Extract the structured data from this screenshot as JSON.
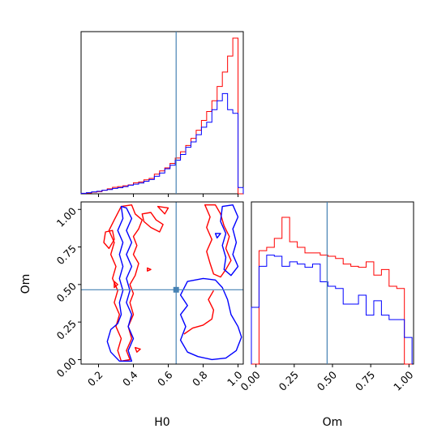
{
  "chart_data": {
    "type": "corner",
    "parameters": [
      "H0",
      "Om"
    ],
    "truths": {
      "H0": 0.645,
      "Om": 0.465
    },
    "colors": {
      "red": "#ff0000",
      "blue": "#0000ff",
      "truth": "#4682b4"
    },
    "panels": [
      {
        "id": "hist-H0",
        "type": "histogram",
        "xlim": [
          0.1,
          1.03
        ],
        "bin_edges": [
          0.1,
          0.13,
          0.16,
          0.19,
          0.22,
          0.25,
          0.28,
          0.31,
          0.34,
          0.37,
          0.4,
          0.43,
          0.46,
          0.49,
          0.52,
          0.55,
          0.58,
          0.61,
          0.64,
          0.67,
          0.7,
          0.73,
          0.76,
          0.79,
          0.82,
          0.85,
          0.88,
          0.91,
          0.94,
          0.97,
          1.0,
          1.03
        ],
        "series": [
          {
            "color": "red",
            "values": [
              0.002,
              0.004,
              0.009,
              0.012,
              0.02,
              0.028,
              0.036,
              0.04,
              0.045,
              0.05,
              0.062,
              0.066,
              0.078,
              0.086,
              0.11,
              0.128,
              0.145,
              0.17,
              0.2,
              0.235,
              0.27,
              0.31,
              0.355,
              0.41,
              0.46,
              0.52,
              0.6,
              0.68,
              0.77,
              0.87,
              0.0
            ]
          },
          {
            "color": "blue",
            "values": [
              0.003,
              0.006,
              0.011,
              0.014,
              0.02,
              0.024,
              0.03,
              0.034,
              0.04,
              0.048,
              0.054,
              0.06,
              0.07,
              0.08,
              0.098,
              0.116,
              0.14,
              0.16,
              0.188,
              0.22,
              0.26,
              0.29,
              0.33,
              0.372,
              0.4,
              0.47,
              0.52,
              0.56,
              0.47,
              0.45,
              0.035
            ]
          }
        ]
      },
      {
        "id": "contour-H0-Om",
        "type": "contour",
        "xlim": [
          0.1,
          1.03
        ],
        "ylim": [
          -0.03,
          1.05
        ],
        "contours": [
          {
            "color": "red",
            "closed": true,
            "points": [
              [
                0.33,
                1.02
              ],
              [
                0.39,
                1.03
              ],
              [
                0.41,
                0.97
              ],
              [
                0.45,
                0.93
              ],
              [
                0.43,
                0.87
              ],
              [
                0.4,
                0.82
              ],
              [
                0.42,
                0.76
              ],
              [
                0.4,
                0.7
              ],
              [
                0.43,
                0.64
              ],
              [
                0.41,
                0.56
              ],
              [
                0.38,
                0.5
              ],
              [
                0.4,
                0.44
              ],
              [
                0.38,
                0.38
              ],
              [
                0.4,
                0.3
              ],
              [
                0.37,
                0.22
              ],
              [
                0.39,
                0.14
              ],
              [
                0.36,
                0.06
              ],
              [
                0.38,
                0.0
              ],
              [
                0.33,
                -0.01
              ],
              [
                0.31,
                0.06
              ],
              [
                0.33,
                0.14
              ],
              [
                0.3,
                0.22
              ],
              [
                0.32,
                0.3
              ],
              [
                0.29,
                0.38
              ],
              [
                0.31,
                0.46
              ],
              [
                0.28,
                0.54
              ],
              [
                0.3,
                0.62
              ],
              [
                0.27,
                0.7
              ],
              [
                0.29,
                0.78
              ],
              [
                0.26,
                0.86
              ],
              [
                0.29,
                0.93
              ],
              [
                0.33,
                1.02
              ]
            ]
          },
          {
            "color": "red",
            "closed": true,
            "points": [
              [
                0.24,
                0.85
              ],
              [
                0.28,
                0.86
              ],
              [
                0.29,
                0.8
              ],
              [
                0.26,
                0.74
              ],
              [
                0.23,
                0.78
              ],
              [
                0.24,
                0.85
              ]
            ]
          },
          {
            "color": "red",
            "closed": true,
            "points": [
              [
                0.45,
                0.97
              ],
              [
                0.5,
                0.98
              ],
              [
                0.53,
                0.93
              ],
              [
                0.57,
                0.9
              ],
              [
                0.55,
                0.85
              ],
              [
                0.5,
                0.88
              ],
              [
                0.46,
                0.92
              ],
              [
                0.45,
                0.97
              ]
            ]
          },
          {
            "color": "red",
            "closed": true,
            "points": [
              [
                0.54,
                1.02
              ],
              [
                0.6,
                1.01
              ],
              [
                0.58,
                0.97
              ],
              [
                0.54,
                1.02
              ]
            ]
          },
          {
            "color": "red",
            "closed": true,
            "points": [
              [
                0.81,
                1.03
              ],
              [
                0.87,
                1.03
              ],
              [
                0.9,
                0.97
              ],
              [
                0.92,
                0.89
              ],
              [
                0.95,
                0.82
              ],
              [
                0.93,
                0.74
              ],
              [
                0.96,
                0.66
              ],
              [
                0.93,
                0.6
              ],
              [
                0.9,
                0.55
              ],
              [
                0.86,
                0.57
              ],
              [
                0.84,
                0.64
              ],
              [
                0.82,
                0.72
              ],
              [
                0.85,
                0.8
              ],
              [
                0.82,
                0.88
              ],
              [
                0.84,
                0.95
              ],
              [
                0.81,
                1.03
              ]
            ]
          },
          {
            "color": "red",
            "closed": false,
            "points": [
              [
                0.69,
                0.17
              ],
              [
                0.74,
                0.21
              ],
              [
                0.8,
                0.23
              ],
              [
                0.85,
                0.27
              ],
              [
                0.86,
                0.33
              ],
              [
                0.83,
                0.4
              ],
              [
                0.86,
                0.46
              ]
            ]
          },
          {
            "color": "red",
            "closed": true,
            "points": [
              [
                0.29,
                0.52
              ],
              [
                0.31,
                0.5
              ],
              [
                0.29,
                0.48
              ],
              [
                0.29,
                0.52
              ]
            ]
          },
          {
            "color": "red",
            "closed": true,
            "points": [
              [
                0.41,
                0.08
              ],
              [
                0.44,
                0.07
              ],
              [
                0.42,
                0.05
              ],
              [
                0.41,
                0.08
              ]
            ]
          },
          {
            "color": "red",
            "closed": true,
            "points": [
              [
                0.48,
                0.61
              ],
              [
                0.5,
                0.6
              ],
              [
                0.48,
                0.59
              ],
              [
                0.48,
                0.61
              ]
            ]
          },
          {
            "color": "blue",
            "closed": true,
            "points": [
              [
                0.33,
                1.02
              ],
              [
                0.36,
                1.01
              ],
              [
                0.39,
                0.94
              ],
              [
                0.36,
                0.86
              ],
              [
                0.39,
                0.78
              ],
              [
                0.36,
                0.7
              ],
              [
                0.39,
                0.62
              ],
              [
                0.36,
                0.54
              ],
              [
                0.38,
                0.46
              ],
              [
                0.36,
                0.38
              ],
              [
                0.39,
                0.3
              ],
              [
                0.37,
                0.22
              ],
              [
                0.4,
                0.14
              ],
              [
                0.37,
                0.06
              ],
              [
                0.39,
                -0.01
              ],
              [
                0.32,
                -0.01
              ],
              [
                0.27,
                0.05
              ],
              [
                0.25,
                0.12
              ],
              [
                0.27,
                0.2
              ],
              [
                0.31,
                0.24
              ],
              [
                0.33,
                0.3
              ],
              [
                0.32,
                0.38
              ],
              [
                0.34,
                0.46
              ],
              [
                0.32,
                0.54
              ],
              [
                0.34,
                0.62
              ],
              [
                0.32,
                0.7
              ],
              [
                0.34,
                0.78
              ],
              [
                0.31,
                0.86
              ],
              [
                0.34,
                0.94
              ],
              [
                0.33,
                1.02
              ]
            ]
          },
          {
            "color": "blue",
            "closed": true,
            "points": [
              [
                0.71,
                0.52
              ],
              [
                0.8,
                0.54
              ],
              [
                0.87,
                0.53
              ],
              [
                0.91,
                0.48
              ],
              [
                0.94,
                0.4
              ],
              [
                0.96,
                0.3
              ],
              [
                1.0,
                0.22
              ],
              [
                1.02,
                0.15
              ],
              [
                0.99,
                0.06
              ],
              [
                0.93,
                0.01
              ],
              [
                0.85,
                0.0
              ],
              [
                0.77,
                0.02
              ],
              [
                0.71,
                0.05
              ],
              [
                0.67,
                0.13
              ],
              [
                0.7,
                0.22
              ],
              [
                0.67,
                0.3
              ],
              [
                0.71,
                0.36
              ],
              [
                0.67,
                0.43
              ],
              [
                0.71,
                0.52
              ]
            ]
          },
          {
            "color": "blue",
            "closed": true,
            "points": [
              [
                0.91,
                1.02
              ],
              [
                0.97,
                1.03
              ],
              [
                1.0,
                0.95
              ],
              [
                0.97,
                0.87
              ],
              [
                0.99,
                0.78
              ],
              [
                0.97,
                0.7
              ],
              [
                1.0,
                0.62
              ],
              [
                0.96,
                0.56
              ],
              [
                0.92,
                0.6
              ],
              [
                0.93,
                0.68
              ],
              [
                0.91,
                0.76
              ],
              [
                0.93,
                0.84
              ],
              [
                0.9,
                0.92
              ],
              [
                0.91,
                1.02
              ]
            ]
          },
          {
            "color": "blue",
            "closed": true,
            "points": [
              [
                0.87,
                0.84
              ],
              [
                0.9,
                0.84
              ],
              [
                0.88,
                0.81
              ],
              [
                0.87,
                0.84
              ]
            ]
          }
        ]
      },
      {
        "id": "hist-Om",
        "type": "histogram",
        "xlim": [
          -0.03,
          1.03
        ],
        "bin_edges": [
          -0.03,
          0.02,
          0.07,
          0.12,
          0.17,
          0.22,
          0.27,
          0.32,
          0.37,
          0.42,
          0.47,
          0.52,
          0.57,
          0.62,
          0.67,
          0.72,
          0.77,
          0.82,
          0.87,
          0.92,
          0.97,
          1.02
        ],
        "series": [
          {
            "color": "red",
            "values": [
              0.0,
              1.02,
              1.05,
              1.13,
              1.32,
              1.1,
              1.05,
              1.0,
              1.0,
              0.98,
              0.97,
              0.95,
              0.9,
              0.88,
              0.87,
              0.92,
              0.8,
              0.85,
              0.7,
              0.68,
              0.0
            ]
          },
          {
            "color": "blue",
            "values": [
              0.51,
              0.88,
              0.98,
              0.97,
              0.88,
              0.92,
              0.9,
              0.87,
              0.9,
              0.74,
              0.7,
              0.68,
              0.54,
              0.54,
              0.62,
              0.44,
              0.57,
              0.44,
              0.4,
              0.4,
              0.24
            ]
          }
        ]
      }
    ],
    "x_ticks": {
      "H0": [
        "0.2",
        "0.4",
        "0.6",
        "0.8",
        "1.0"
      ],
      "Om": [
        "0.00",
        "0.25",
        "0.50",
        "0.75",
        "1.00"
      ]
    },
    "y_ticks": {
      "Om": [
        "0.00",
        "0.25",
        "0.50",
        "0.75",
        "1.00"
      ]
    },
    "xlabel_left": "H0",
    "xlabel_right": "Om",
    "ylabel_left": "Om"
  }
}
